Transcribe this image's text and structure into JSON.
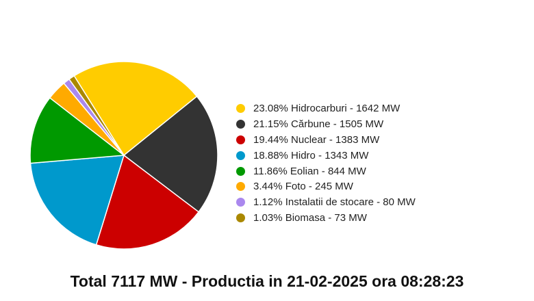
{
  "chart_data": {
    "type": "pie",
    "slices": [
      {
        "label": "23.08% Hidrocarburi - 1642 MW",
        "name": "Hidrocarburi",
        "percent": 23.08,
        "value": 1642,
        "color": "#ffcc00"
      },
      {
        "label": "21.15% Cărbune - 1505 MW",
        "name": "Cărbune",
        "percent": 21.15,
        "value": 1505,
        "color": "#333333"
      },
      {
        "label": "19.44% Nuclear - 1383 MW",
        "name": "Nuclear",
        "percent": 19.44,
        "value": 1383,
        "color": "#cc0000"
      },
      {
        "label": "18.88% Hidro - 1343 MW",
        "name": "Hidro",
        "percent": 18.88,
        "value": 1343,
        "color": "#0099cc"
      },
      {
        "label": "11.86% Eolian - 844 MW",
        "name": "Eolian",
        "percent": 11.86,
        "value": 844,
        "color": "#009900"
      },
      {
        "label": "3.44% Foto - 245 MW",
        "name": "Foto",
        "percent": 3.44,
        "value": 245,
        "color": "#ffaa00"
      },
      {
        "label": "1.12% Instalatii de stocare - 80 MW",
        "name": "Instalatii de stocare",
        "percent": 1.12,
        "value": 80,
        "color": "#aa88ee"
      },
      {
        "label": "1.03% Biomasa - 73 MW",
        "name": "Biomasa",
        "percent": 1.03,
        "value": 73,
        "color": "#aa8800"
      }
    ],
    "legend_position": "right"
  },
  "footer": {
    "total_label": "Total 7117 MW - Productia in 21-02-2025 ora 08:28:23"
  }
}
